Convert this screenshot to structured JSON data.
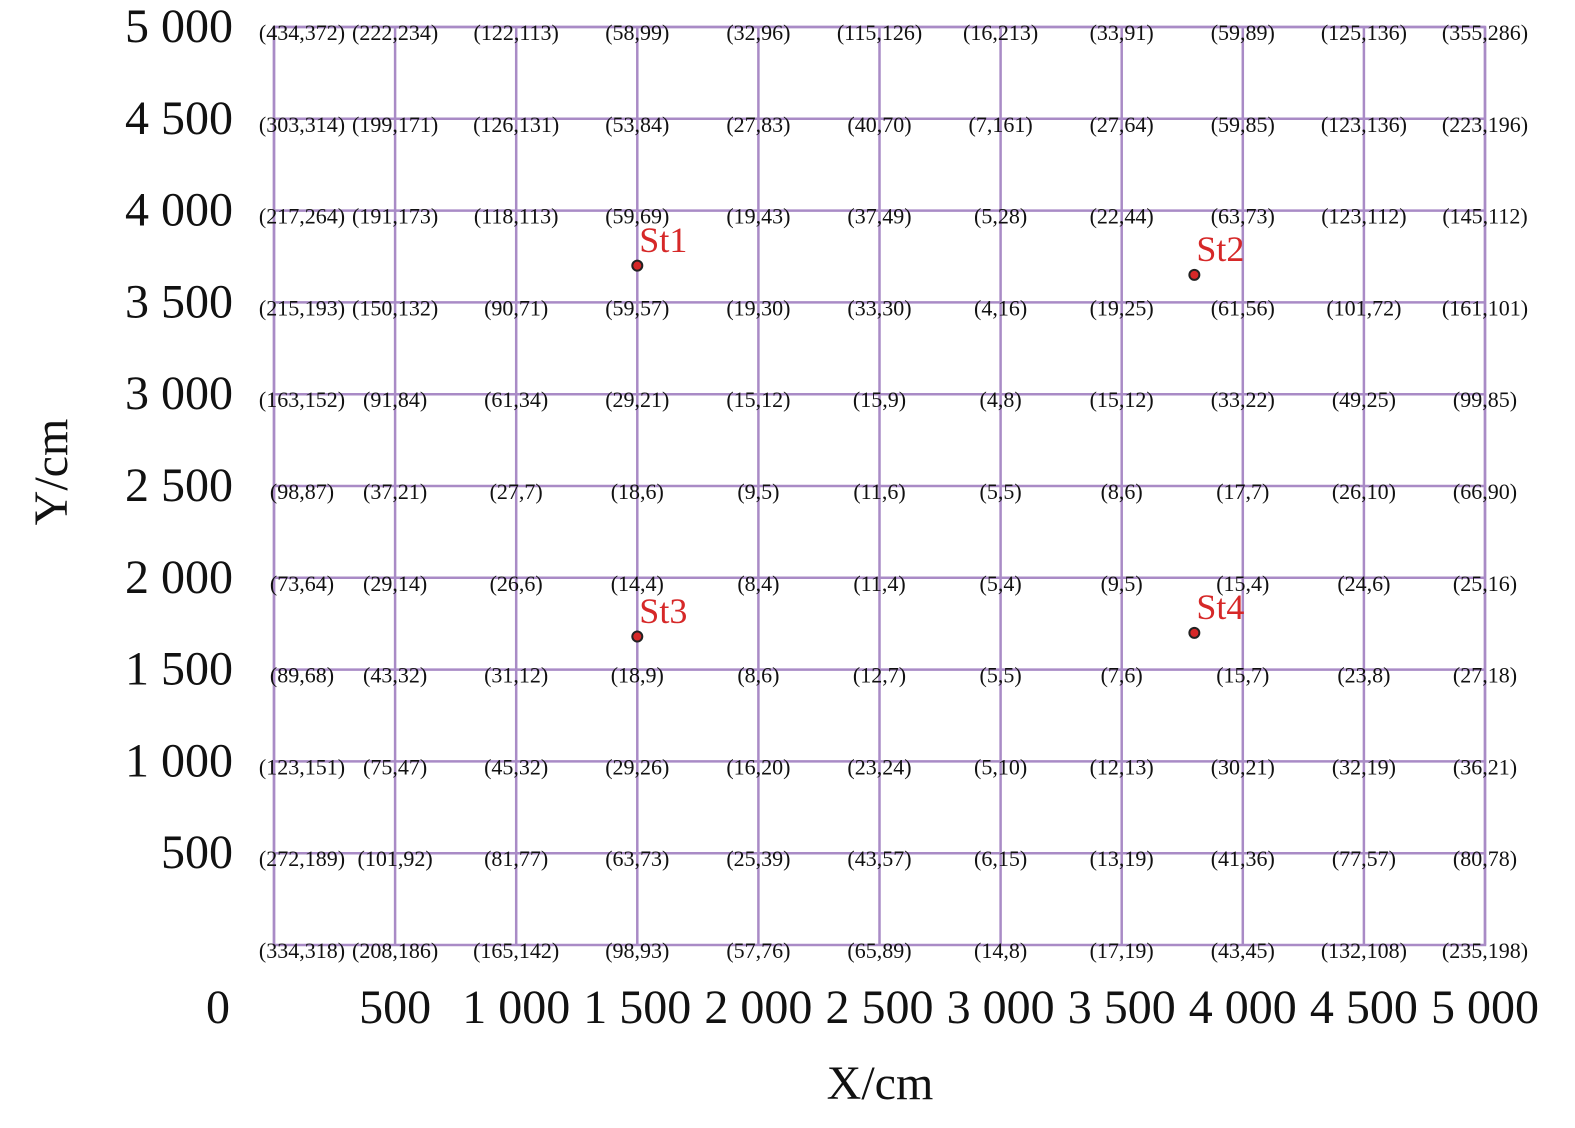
{
  "chart_data": {
    "type": "scatter",
    "xlabel": "X/cm",
    "ylabel": "Y/cm",
    "xlim": [
      0,
      5000
    ],
    "ylim": [
      0,
      5000
    ],
    "xticks": [
      0,
      500,
      {
        "value": 1000,
        "label": "1 000"
      },
      {
        "value": 1500,
        "label": "1 500"
      },
      {
        "value": 2000,
        "label": "2 000"
      },
      {
        "value": 2500,
        "label": "2 500"
      },
      {
        "value": 3000,
        "label": "3 000"
      },
      {
        "value": 3500,
        "label": "3 500"
      },
      {
        "value": 4000,
        "label": "4 000"
      },
      {
        "value": 4500,
        "label": "4 500"
      },
      {
        "value": 5000,
        "label": "5 000"
      }
    ],
    "yticks": [
      500,
      {
        "value": 1000,
        "label": "1 000"
      },
      {
        "value": 1500,
        "label": "1 500"
      },
      {
        "value": 2000,
        "label": "2 000"
      },
      {
        "value": 2500,
        "label": "2 500"
      },
      {
        "value": 3000,
        "label": "3 000"
      },
      {
        "value": 3500,
        "label": "3 500"
      },
      {
        "value": 4000,
        "label": "4 000"
      },
      {
        "value": 4500,
        "label": "4 500"
      },
      {
        "value": 5000,
        "label": "5 000"
      }
    ],
    "grid": true,
    "grid_color": "#a98bc6",
    "color": "#d62828",
    "points": [
      {
        "name": "St1",
        "x": 1500,
        "y": 3700
      },
      {
        "name": "St2",
        "x": 3800,
        "y": 3650
      },
      {
        "name": "St3",
        "x": 1500,
        "y": 1680
      },
      {
        "name": "St4",
        "x": 3800,
        "y": 1700
      }
    ],
    "cell_labels": [
      [
        "(434,372)",
        "(222,234)",
        "(122,113)",
        "(58,99)",
        "(32,96)",
        "(115,126)",
        "(16,213)",
        "(33,91)",
        "(59,89)",
        "(125,136)",
        "(355,286)"
      ],
      [
        "(303,314)",
        "(199,171)",
        "(126,131)",
        "(53,84)",
        "(27,83)",
        "(40,70)",
        "(7,161)",
        "(27,64)",
        "(59,85)",
        "(123,136)",
        "(223,196)"
      ],
      [
        "(217,264)",
        "(191,173)",
        "(118,113)",
        "(59,69)",
        "(19,43)",
        "(37,49)",
        "(5,28)",
        "(22,44)",
        "(63,73)",
        "(123,112)",
        "(145,112)"
      ],
      [
        "(215,193)",
        "(150,132)",
        "(90,71)",
        "(59,57)",
        "(19,30)",
        "(33,30)",
        "(4,16)",
        "(19,25)",
        "(61,56)",
        "(101,72)",
        "(161,101)"
      ],
      [
        "(163,152)",
        "(91,84)",
        "(61,34)",
        "(29,21)",
        "(15,12)",
        "(15,9)",
        "(4,8)",
        "(15,12)",
        "(33,22)",
        "(49,25)",
        "(99,85)"
      ],
      [
        "(98,87)",
        "(37,21)",
        "(27,7)",
        "(18,6)",
        "(9,5)",
        "(11,6)",
        "(5,5)",
        "(8,6)",
        "(17,7)",
        "(26,10)",
        "(66,90)"
      ],
      [
        "(73,64)",
        "(29,14)",
        "(26,6)",
        "(14,4)",
        "(8,4)",
        "(11,4)",
        "(5,4)",
        "(9,5)",
        "(15,4)",
        "(24,6)",
        "(25,16)"
      ],
      [
        "(89,68)",
        "(43,32)",
        "(31,12)",
        "(18,9)",
        "(8,6)",
        "(12,7)",
        "(5,5)",
        "(7,6)",
        "(15,7)",
        "(23,8)",
        "(27,18)"
      ],
      [
        "(123,151)",
        "(75,47)",
        "(45,32)",
        "(29,26)",
        "(16,20)",
        "(23,24)",
        "(5,10)",
        "(12,13)",
        "(30,21)",
        "(32,19)",
        "(36,21)"
      ],
      [
        "(272,189)",
        "(101,92)",
        "(81,77)",
        "(63,73)",
        "(25,39)",
        "(43,57)",
        "(6,15)",
        "(13,19)",
        "(41,36)",
        "(77,57)",
        "(80,78)"
      ],
      [
        "(334,318)",
        "(208,186)",
        "(165,142)",
        "(98,93)",
        "(57,76)",
        "(65,89)",
        "(14,8)",
        "(17,19)",
        "(43,45)",
        "(132,108)",
        "(235,198)"
      ]
    ]
  }
}
